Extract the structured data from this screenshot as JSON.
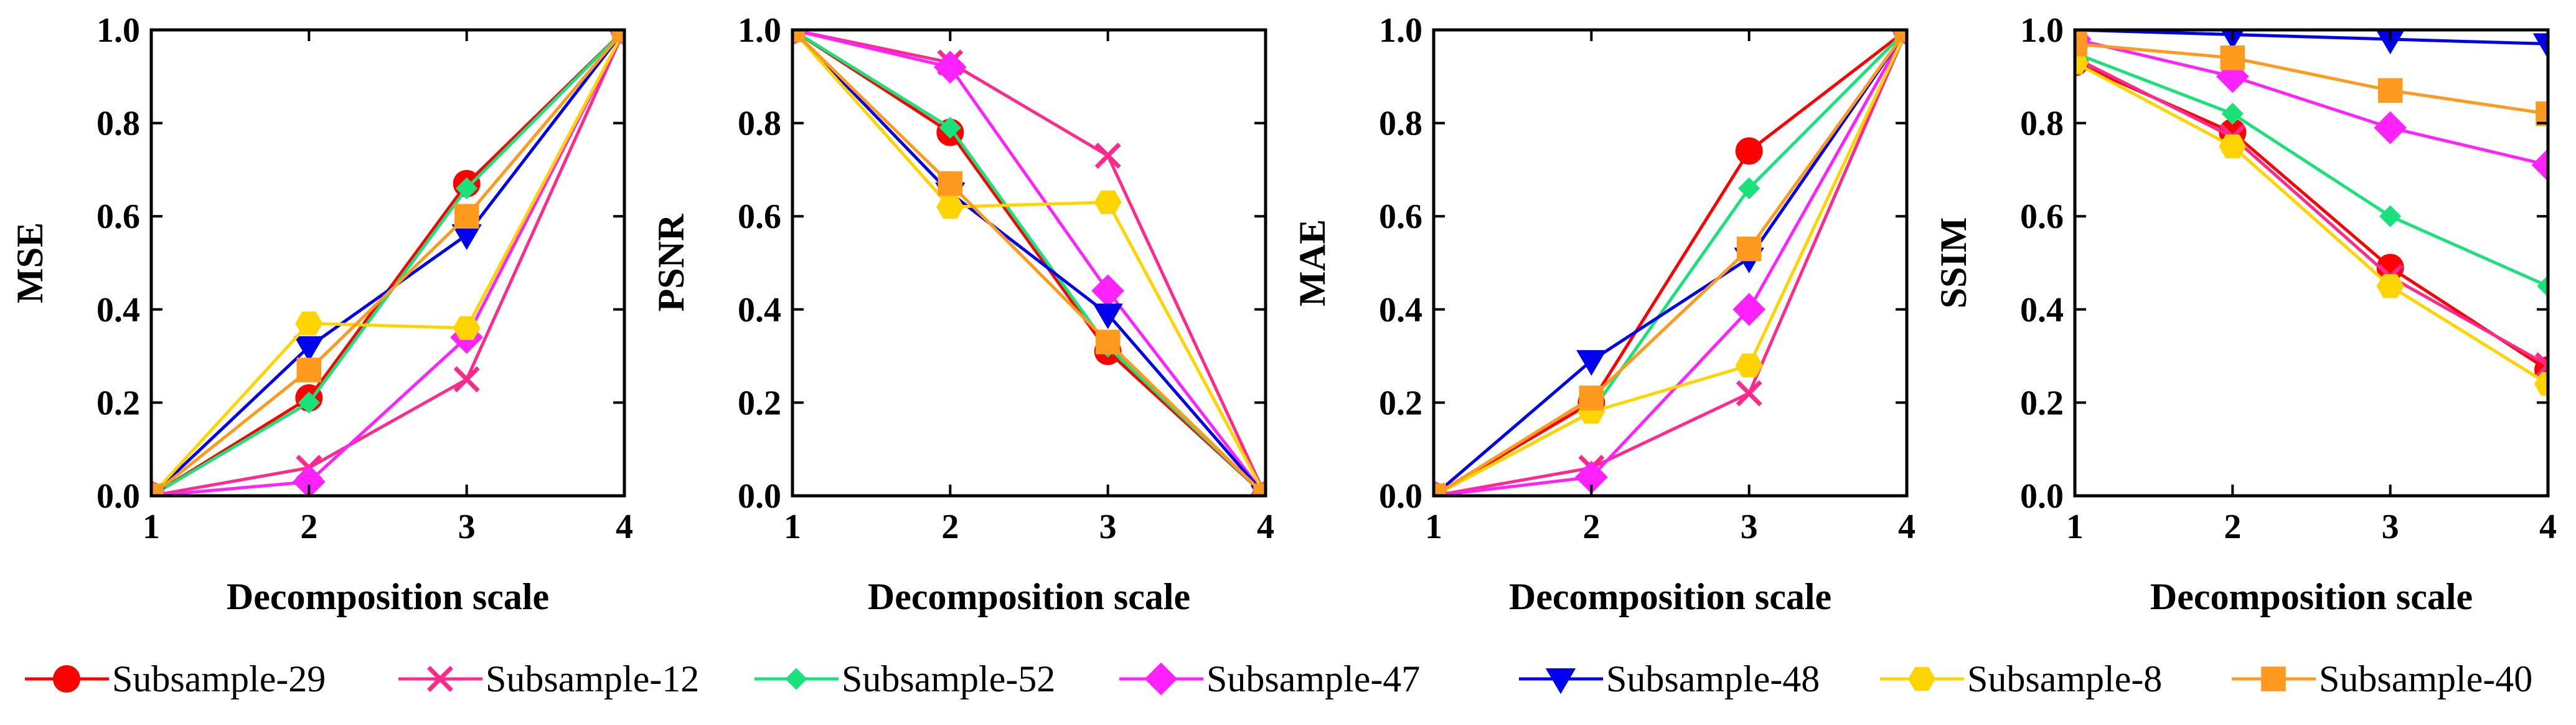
{
  "chart_data": {
    "type": "line",
    "layout": "1x4 subplots",
    "x": [
      1,
      2,
      3,
      4
    ],
    "xlim": [
      1,
      4
    ],
    "ylim": [
      0,
      1
    ],
    "x_ticks": [
      "1",
      "2",
      "3",
      "4"
    ],
    "y_ticks": [
      "0.0",
      "0.2",
      "0.4",
      "0.6",
      "0.8",
      "1.0"
    ],
    "series_meta": [
      {
        "name": "Subsample-29",
        "color": "#ff0000",
        "marker": "circle"
      },
      {
        "name": "Subsample-12",
        "color": "#ff2a8a",
        "marker": "x"
      },
      {
        "name": "Subsample-52",
        "color": "#19e27a",
        "marker": "diamond-small"
      },
      {
        "name": "Subsample-47",
        "color": "#ff22ff",
        "marker": "diamond"
      },
      {
        "name": "Subsample-48",
        "color": "#0000ee",
        "marker": "triangle-down"
      },
      {
        "name": "Subsample-8",
        "color": "#ffd400",
        "marker": "hexagon"
      },
      {
        "name": "Subsample-40",
        "color": "#ff9a1e",
        "marker": "square"
      }
    ],
    "panels": [
      {
        "ylabel": "MSE",
        "xlabel": "Decomposition scale",
        "series": [
          {
            "name": "Subsample-29",
            "values": [
              0.0,
              0.21,
              0.67,
              1.0
            ]
          },
          {
            "name": "Subsample-12",
            "values": [
              0.0,
              0.06,
              0.25,
              1.0
            ]
          },
          {
            "name": "Subsample-52",
            "values": [
              0.0,
              0.2,
              0.66,
              1.0
            ]
          },
          {
            "name": "Subsample-47",
            "values": [
              0.0,
              0.03,
              0.34,
              1.0
            ]
          },
          {
            "name": "Subsample-48",
            "values": [
              0.0,
              0.32,
              0.56,
              1.0
            ]
          },
          {
            "name": "Subsample-8",
            "values": [
              0.0,
              0.37,
              0.36,
              1.0
            ]
          },
          {
            "name": "Subsample-40",
            "values": [
              0.0,
              0.27,
              0.6,
              1.0
            ]
          }
        ]
      },
      {
        "ylabel": "PSNR",
        "xlabel": "Decomposition scale",
        "series": [
          {
            "name": "Subsample-29",
            "values": [
              1.0,
              0.78,
              0.31,
              0.0
            ]
          },
          {
            "name": "Subsample-12",
            "values": [
              1.0,
              0.93,
              0.73,
              0.0
            ]
          },
          {
            "name": "Subsample-52",
            "values": [
              1.0,
              0.79,
              0.32,
              0.0
            ]
          },
          {
            "name": "Subsample-47",
            "values": [
              1.0,
              0.92,
              0.44,
              0.0
            ]
          },
          {
            "name": "Subsample-48",
            "values": [
              1.0,
              0.65,
              0.39,
              0.0
            ]
          },
          {
            "name": "Subsample-8",
            "values": [
              1.0,
              0.62,
              0.63,
              0.0
            ]
          },
          {
            "name": "Subsample-40",
            "values": [
              1.0,
              0.67,
              0.33,
              0.0
            ]
          }
        ]
      },
      {
        "ylabel": "MAE",
        "xlabel": "Decomposition scale",
        "series": [
          {
            "name": "Subsample-29",
            "values": [
              0.0,
              0.2,
              0.74,
              1.0
            ]
          },
          {
            "name": "Subsample-12",
            "values": [
              0.0,
              0.06,
              0.22,
              1.0
            ]
          },
          {
            "name": "Subsample-52",
            "values": [
              0.0,
              0.18,
              0.66,
              1.0
            ]
          },
          {
            "name": "Subsample-47",
            "values": [
              0.0,
              0.04,
              0.4,
              1.0
            ]
          },
          {
            "name": "Subsample-48",
            "values": [
              0.0,
              0.29,
              0.51,
              1.0
            ]
          },
          {
            "name": "Subsample-8",
            "values": [
              0.0,
              0.18,
              0.28,
              1.0
            ]
          },
          {
            "name": "Subsample-40",
            "values": [
              0.0,
              0.21,
              0.53,
              1.0
            ]
          }
        ]
      },
      {
        "ylabel": "SSIM",
        "xlabel": "Decomposition scale",
        "series": [
          {
            "name": "Subsample-29",
            "values": [
              0.93,
              0.78,
              0.49,
              0.27
            ]
          },
          {
            "name": "Subsample-12",
            "values": [
              0.94,
              0.77,
              0.47,
              0.28
            ]
          },
          {
            "name": "Subsample-52",
            "values": [
              0.95,
              0.82,
              0.6,
              0.45
            ]
          },
          {
            "name": "Subsample-47",
            "values": [
              0.98,
              0.9,
              0.79,
              0.71
            ]
          },
          {
            "name": "Subsample-48",
            "values": [
              1.0,
              0.99,
              0.98,
              0.97
            ]
          },
          {
            "name": "Subsample-8",
            "values": [
              0.93,
              0.75,
              0.45,
              0.24
            ]
          },
          {
            "name": "Subsample-40",
            "values": [
              0.97,
              0.94,
              0.87,
              0.82
            ]
          }
        ]
      }
    ]
  }
}
